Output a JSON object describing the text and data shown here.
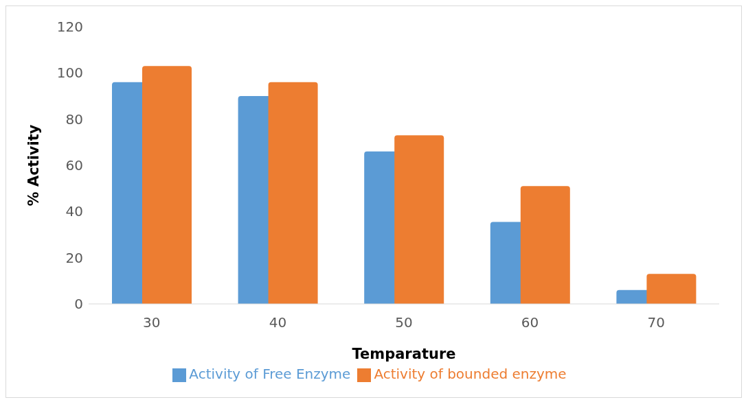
{
  "chart_data": {
    "type": "bar",
    "xlabel": "Temparature",
    "ylabel": "% Activity",
    "categories": [
      "30",
      "40",
      "50",
      "60",
      "70"
    ],
    "series": [
      {
        "name": "Activity of Free Enzyme",
        "color": "#5b9bd5",
        "values": [
          96,
          90,
          66,
          35.5,
          6
        ]
      },
      {
        "name": "Activity of bounded enzyme",
        "color": "#ed7d31",
        "values": [
          103,
          96,
          73,
          51,
          13
        ]
      }
    ],
    "ylim": [
      0,
      120
    ],
    "yticks": [
      0,
      20,
      40,
      60,
      80,
      100,
      120
    ],
    "grid": false,
    "legend": "bottom"
  }
}
